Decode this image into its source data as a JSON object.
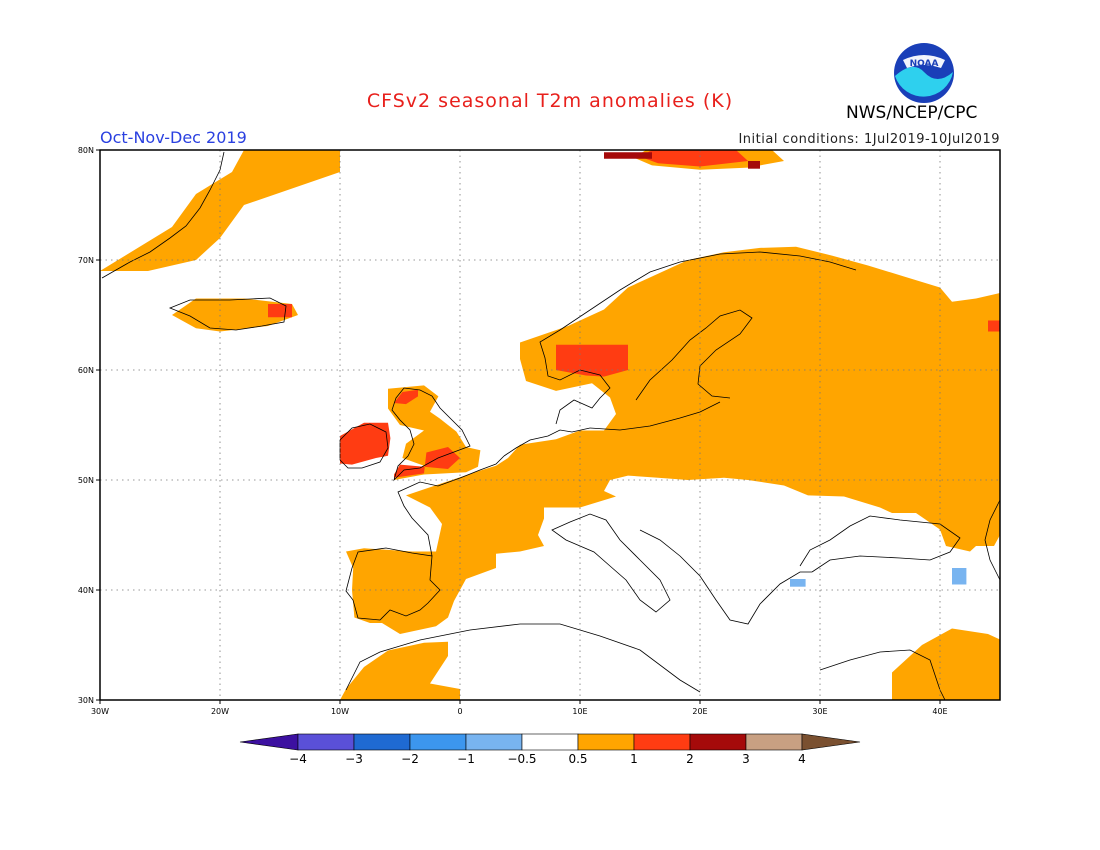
{
  "header": {
    "title": "CFSv2 seasonal T2m anomalies (K)",
    "period": "Oct-Nov-Dec 2019",
    "initial_conditions": "Initial conditions: 1Jul2019-10Jul2019",
    "agency": "NWS/NCEP/CPC",
    "logo_text": "NOAA"
  },
  "map": {
    "lon_range": [
      -30,
      45
    ],
    "lat_range": [
      30,
      80
    ],
    "x_ticks": [
      {
        "lon": -30,
        "label": "30W"
      },
      {
        "lon": -20,
        "label": "20W"
      },
      {
        "lon": -10,
        "label": "10W"
      },
      {
        "lon": 0,
        "label": "0"
      },
      {
        "lon": 10,
        "label": "10E"
      },
      {
        "lon": 20,
        "label": "20E"
      },
      {
        "lon": 30,
        "label": "30E"
      },
      {
        "lon": 40,
        "label": "40E"
      }
    ],
    "y_ticks": [
      {
        "lat": 30,
        "label": "30N"
      },
      {
        "lat": 40,
        "label": "40N"
      },
      {
        "lat": 50,
        "label": "50N"
      },
      {
        "lat": 60,
        "label": "60N"
      },
      {
        "lat": 70,
        "label": "70N"
      },
      {
        "lat": 80,
        "label": "80N"
      }
    ],
    "gridlines": true,
    "colors": {
      "anom_0_5_1": "#ffa500",
      "anom_1_2": "#ff3c12",
      "anom_2_3": "#a50a0a",
      "anom_m1_m0_5": "#78b4f0"
    },
    "regions": [
      {
        "level": "0.5-1",
        "name": "greenland-east",
        "points": [
          [
            -30,
            69
          ],
          [
            -27,
            71
          ],
          [
            -24,
            73
          ],
          [
            -22,
            76
          ],
          [
            -19,
            78
          ],
          [
            -18,
            80
          ],
          [
            -10,
            80
          ],
          [
            -10,
            78
          ],
          [
            -18,
            75
          ],
          [
            -20,
            72
          ],
          [
            -22,
            70
          ],
          [
            -26,
            69
          ]
        ]
      },
      {
        "level": "0.5-1",
        "name": "iceland",
        "points": [
          [
            -24,
            65
          ],
          [
            -22,
            66.5
          ],
          [
            -18,
            66.5
          ],
          [
            -14,
            66
          ],
          [
            -13.5,
            65
          ],
          [
            -16,
            64
          ],
          [
            -20,
            63.5
          ],
          [
            -22,
            63.8
          ]
        ]
      },
      {
        "level": "1-2",
        "name": "iceland-east",
        "points": [
          [
            -16,
            66
          ],
          [
            -14,
            66
          ],
          [
            -14,
            64.8
          ],
          [
            -16,
            64.8
          ]
        ]
      },
      {
        "level": "0.5-1",
        "name": "europe-main",
        "points": [
          [
            -9.5,
            43.5
          ],
          [
            -8,
            43.8
          ],
          [
            -4,
            43.5
          ],
          [
            -2,
            43.5
          ],
          [
            -1.5,
            46
          ],
          [
            -2.5,
            47.5
          ],
          [
            -4.5,
            48.6
          ],
          [
            -1.5,
            49.7
          ],
          [
            1.5,
            50.8
          ],
          [
            3,
            51.3
          ],
          [
            4,
            52
          ],
          [
            5,
            53.2
          ],
          [
            8,
            53.7
          ],
          [
            10,
            54.5
          ],
          [
            12,
            54.5
          ],
          [
            13,
            56
          ],
          [
            12.5,
            57.5
          ],
          [
            11,
            58.8
          ],
          [
            8,
            58.1
          ],
          [
            5.5,
            59
          ],
          [
            5,
            61
          ],
          [
            5,
            62.5
          ],
          [
            9,
            64
          ],
          [
            12,
            65.5
          ],
          [
            14,
            67.5
          ],
          [
            16,
            68.5
          ],
          [
            19,
            70
          ],
          [
            22,
            70.7
          ],
          [
            25,
            71.1
          ],
          [
            28,
            71.2
          ],
          [
            31,
            70.4
          ],
          [
            34,
            69.5
          ],
          [
            37,
            68.5
          ],
          [
            40,
            67.5
          ],
          [
            41,
            66.2
          ],
          [
            43,
            66.5
          ],
          [
            45,
            67
          ],
          [
            45,
            45
          ],
          [
            44.5,
            44
          ],
          [
            43,
            44
          ],
          [
            42.5,
            43.5
          ],
          [
            40.5,
            44
          ],
          [
            40,
            45.5
          ],
          [
            38,
            47
          ],
          [
            36,
            47
          ],
          [
            35,
            47.5
          ],
          [
            32,
            48.5
          ],
          [
            29,
            48.6
          ],
          [
            27,
            49.5
          ],
          [
            24,
            50
          ],
          [
            22,
            50.2
          ],
          [
            19,
            50
          ],
          [
            16.5,
            50.2
          ],
          [
            14,
            50.4
          ],
          [
            12.5,
            50
          ],
          [
            12,
            49
          ],
          [
            13,
            48.5
          ],
          [
            10,
            47.5
          ],
          [
            7,
            47.5
          ],
          [
            7,
            46.5
          ],
          [
            6.5,
            45
          ],
          [
            7,
            44
          ],
          [
            5,
            43.5
          ],
          [
            3,
            43.3
          ],
          [
            3,
            42
          ],
          [
            0.5,
            41
          ],
          [
            -0.5,
            39
          ],
          [
            -1,
            37.5
          ],
          [
            -2,
            36.7
          ],
          [
            -5,
            36
          ],
          [
            -6.5,
            37
          ],
          [
            -7.5,
            37
          ],
          [
            -8.8,
            37.5
          ],
          [
            -9,
            40
          ],
          [
            -8.9,
            42
          ],
          [
            -9.3,
            43
          ]
        ]
      },
      {
        "level": "0.5-1",
        "name": "north-africa",
        "points": [
          [
            -10,
            30
          ],
          [
            -9.5,
            31
          ],
          [
            -8,
            33
          ],
          [
            -6,
            34.5
          ],
          [
            -3,
            35.2
          ],
          [
            -1,
            35.3
          ],
          [
            -1,
            34
          ],
          [
            -2.5,
            31.5
          ],
          [
            0,
            31
          ],
          [
            0,
            30
          ]
        ]
      },
      {
        "level": "0.5-1",
        "name": "anatolia-levant",
        "points": [
          [
            36,
            30
          ],
          [
            36,
            32.5
          ],
          [
            38.5,
            35
          ],
          [
            41,
            36.5
          ],
          [
            44,
            36
          ],
          [
            45,
            35.5
          ],
          [
            45,
            30
          ]
        ]
      },
      {
        "level": "0.5-1",
        "name": "britain-ireland",
        "points": [
          [
            -5.5,
            50
          ],
          [
            -5,
            50.5
          ],
          [
            -3,
            51.3
          ],
          [
            -4.8,
            52
          ],
          [
            -4.5,
            53.3
          ],
          [
            -3,
            54.5
          ],
          [
            -5,
            55
          ],
          [
            -6,
            56.5
          ],
          [
            -6,
            58.3
          ],
          [
            -3,
            58.6
          ],
          [
            -1.8,
            57.6
          ],
          [
            -2.5,
            56.2
          ],
          [
            -1.7,
            55.6
          ],
          [
            -0.3,
            54.4
          ],
          [
            0.5,
            53
          ],
          [
            1.7,
            52.7
          ],
          [
            1.5,
            51.2
          ],
          [
            0.5,
            50.7
          ],
          [
            -3,
            50.5
          ]
        ]
      },
      {
        "level": "1-2",
        "name": "ireland",
        "points": [
          [
            -10,
            51.5
          ],
          [
            -10,
            54
          ],
          [
            -8,
            55.2
          ],
          [
            -6,
            55.2
          ],
          [
            -5.8,
            53.8
          ],
          [
            -6,
            52.2
          ],
          [
            -7,
            52
          ],
          [
            -9,
            51.4
          ]
        ]
      },
      {
        "level": "1-2",
        "name": "wales-england",
        "points": [
          [
            -5.5,
            50.2
          ],
          [
            -3,
            50.6
          ],
          [
            -2.8,
            52.5
          ],
          [
            -1,
            53
          ],
          [
            0,
            52
          ],
          [
            -1,
            51
          ],
          [
            -3,
            51.2
          ],
          [
            -5,
            51.4
          ],
          [
            -5.5,
            50.5
          ]
        ]
      },
      {
        "level": "1-2",
        "name": "scotland",
        "points": [
          [
            -5.5,
            57
          ],
          [
            -4.8,
            58
          ],
          [
            -3.5,
            58.2
          ],
          [
            -3.5,
            57.6
          ],
          [
            -4.5,
            56.9
          ]
        ]
      },
      {
        "level": "1-2",
        "name": "south-norway",
        "points": [
          [
            8,
            60
          ],
          [
            8,
            62.3
          ],
          [
            14,
            62.3
          ],
          [
            14,
            60
          ],
          [
            12,
            59.4
          ],
          [
            10.5,
            59.5
          ]
        ]
      },
      {
        "level": "1-2",
        "name": "russia-east-edge",
        "points": [
          [
            44,
            63.5
          ],
          [
            44,
            64.5
          ],
          [
            45,
            64.5
          ],
          [
            45,
            63.5
          ]
        ]
      },
      {
        "level": "0.5-1",
        "name": "svalbard",
        "points": [
          [
            14.5,
            79.3
          ],
          [
            15.5,
            80
          ],
          [
            26,
            80
          ],
          [
            27,
            79
          ],
          [
            24,
            78.4
          ],
          [
            20,
            78.2
          ],
          [
            16,
            78.6
          ]
        ]
      },
      {
        "level": "1-2",
        "name": "svalbard-core",
        "points": [
          [
            15,
            79.4
          ],
          [
            16,
            80
          ],
          [
            23,
            80
          ],
          [
            24,
            79
          ],
          [
            20,
            78.5
          ],
          [
            16.5,
            78.8
          ]
        ]
      },
      {
        "level": "2-3",
        "name": "svalbard-west",
        "points": [
          [
            12,
            79.2
          ],
          [
            12,
            79.8
          ],
          [
            16,
            79.8
          ],
          [
            16,
            79.2
          ]
        ]
      },
      {
        "level": "2-3",
        "name": "svalbard-east",
        "points": [
          [
            24,
            78.3
          ],
          [
            24,
            79
          ],
          [
            25,
            79
          ],
          [
            25,
            78.3
          ]
        ]
      },
      {
        "level": "-1--0.5",
        "name": "anatolia-cold-west",
        "points": [
          [
            27.5,
            40.3
          ],
          [
            27.5,
            41
          ],
          [
            28.8,
            41
          ],
          [
            28.8,
            40.3
          ]
        ]
      },
      {
        "level": "-1--0.5",
        "name": "caucasus-cold",
        "points": [
          [
            41,
            40.5
          ],
          [
            41,
            42
          ],
          [
            42.2,
            42
          ],
          [
            42.2,
            40.5
          ]
        ]
      }
    ]
  },
  "colorbar": {
    "labels": [
      "−4",
      "−3",
      "−2",
      "−1",
      "−0.5",
      "0.5",
      "1",
      "2",
      "3",
      "4"
    ],
    "colors": [
      "#3c10a0",
      "#5a50d8",
      "#1f6ad2",
      "#3c96ee",
      "#78b4f0",
      "#ffffff",
      "#ffa500",
      "#ff3c12",
      "#a50a0a",
      "#c8a082",
      "#7a5030"
    ]
  }
}
